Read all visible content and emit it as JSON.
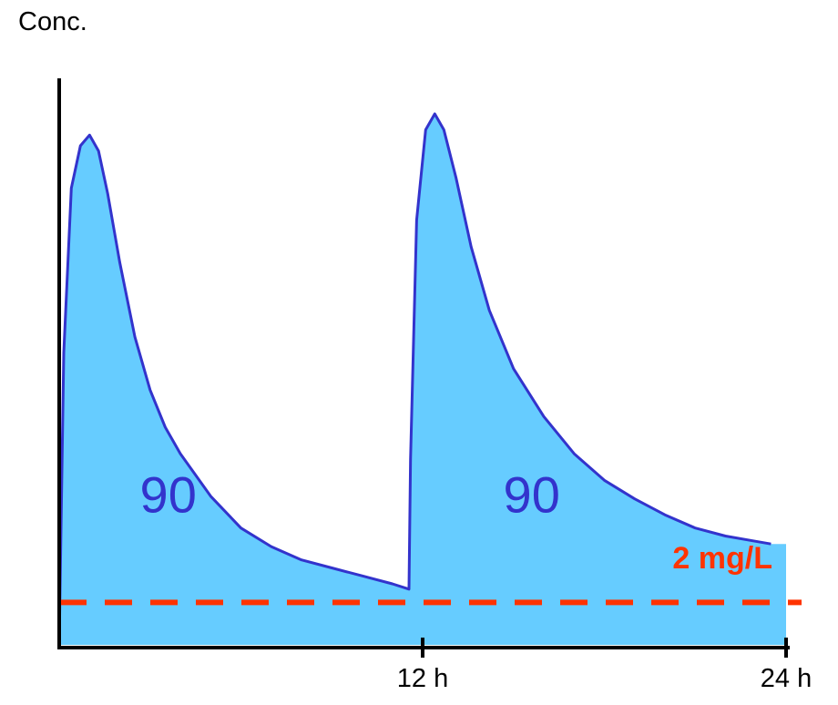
{
  "chart_data": {
    "type": "area",
    "ylabel": "Conc.",
    "xlabel": "",
    "xlim": [
      0,
      24
    ],
    "ylim": [
      0,
      100
    ],
    "x_ticks": [
      {
        "value": 12,
        "label": "12 h"
      },
      {
        "value": 24,
        "label": "24 h"
      }
    ],
    "grid": false,
    "series": [
      {
        "x": [
          0,
          0.15,
          0.4,
          0.7,
          1.0,
          1.3,
          1.6,
          2.0,
          2.5,
          3.0,
          3.5,
          4.0,
          5.0,
          6.0,
          7.0,
          8.0,
          9.0,
          10.0,
          11.0,
          11.55,
          11.6,
          11.8,
          12.1,
          12.4,
          12.7,
          13.1,
          13.6,
          14.2,
          15.0,
          16.0,
          17.0,
          18.0,
          19.0,
          20.0,
          21.0,
          22.0,
          23.0,
          23.5
        ],
        "y": [
          0,
          55,
          86,
          94,
          96,
          93,
          85,
          72,
          58,
          48,
          41,
          36,
          28,
          22,
          18.5,
          16,
          14.5,
          13,
          11.5,
          10.5,
          35,
          80,
          97,
          100,
          97,
          88,
          75,
          63,
          52,
          43,
          36,
          31,
          27.5,
          24.5,
          22,
          20.5,
          19.5,
          19
        ]
      }
    ],
    "area_end_x": 24,
    "area_end_y": 19,
    "annotations": [
      {
        "text": "90",
        "x": 3.6,
        "y": 25
      },
      {
        "text": "90",
        "x": 15.6,
        "y": 25
      }
    ],
    "threshold": {
      "value": 8,
      "label": "2  mg/L"
    },
    "colors": {
      "fill": "#66CCFF",
      "curve": "#3333CC",
      "threshold": "#FF3300",
      "axis": "#000000",
      "annotation": "#3333CC"
    }
  }
}
